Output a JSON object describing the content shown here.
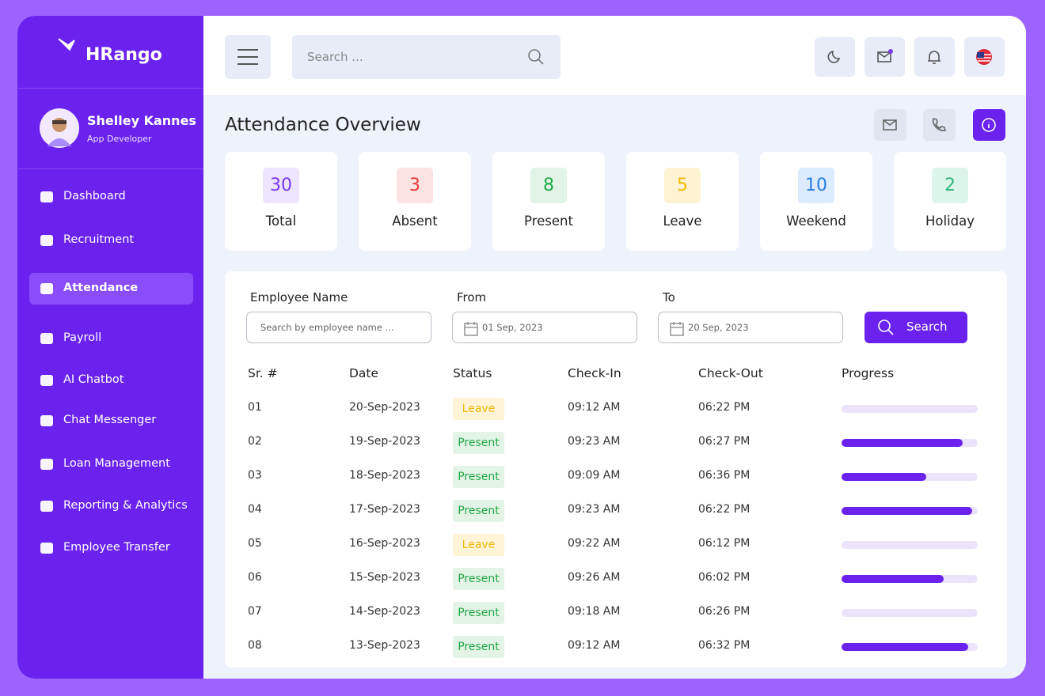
{
  "brand": "HRango",
  "user": {
    "name": "Shelley Kannes",
    "role": "App Developer"
  },
  "nav": [
    "Dashboard",
    "Recruitment",
    "Attendance",
    "Payroll",
    "AI Chatbot",
    "Chat Messenger",
    "Loan Management",
    "Reporting & Analytics",
    "Employee Transfer"
  ],
  "search_placeholder": "Search ...",
  "page_title": "Attendance Overview",
  "stats": [
    {
      "value": "30",
      "label": "Total"
    },
    {
      "value": "3",
      "label": "Absent"
    },
    {
      "value": "8",
      "label": "Present"
    },
    {
      "value": "5",
      "label": "Leave"
    },
    {
      "value": "10",
      "label": "Weekend"
    },
    {
      "value": "2",
      "label": "Holiday"
    }
  ],
  "filters": {
    "employee_label": "Employee Name",
    "employee_placeholder": "Search by employee name ...",
    "from_label": "From",
    "from_value": "01 Sep, 2023",
    "to_label": "To",
    "to_value": "20 Sep, 2023",
    "button": "Search"
  },
  "table": {
    "columns": [
      "Sr. #",
      "Date",
      "Status",
      "Check-In",
      "Check-Out",
      "Progress"
    ],
    "rows": [
      {
        "sr": "01",
        "date": "20-Sep-2023",
        "status": "Leave",
        "check_in": "09:12 AM",
        "check_out": "06:22 PM",
        "progress": 0
      },
      {
        "sr": "02",
        "date": "19-Sep-2023",
        "status": "Present",
        "check_in": "09:23 AM",
        "check_out": "06:27 PM",
        "progress": 89
      },
      {
        "sr": "03",
        "date": "18-Sep-2023",
        "status": "Present",
        "check_in": "09:09 AM",
        "check_out": "06:36 PM",
        "progress": 62
      },
      {
        "sr": "04",
        "date": "17-Sep-2023",
        "status": "Present",
        "check_in": "09:23 AM",
        "check_out": "06:22 PM",
        "progress": 96
      },
      {
        "sr": "05",
        "date": "16-Sep-2023",
        "status": "Leave",
        "check_in": "09:22 AM",
        "check_out": "06:12 PM",
        "progress": 0
      },
      {
        "sr": "06",
        "date": "15-Sep-2023",
        "status": "Present",
        "check_in": "09:26 AM",
        "check_out": "06:02 PM",
        "progress": 75
      },
      {
        "sr": "07",
        "date": "14-Sep-2023",
        "status": "Present",
        "check_in": "09:18 AM",
        "check_out": "06:26 PM",
        "progress": 0
      },
      {
        "sr": "08",
        "date": "13-Sep-2023",
        "status": "Present",
        "check_in": "09:12 AM",
        "check_out": "06:32 PM",
        "progress": 93
      }
    ]
  }
}
